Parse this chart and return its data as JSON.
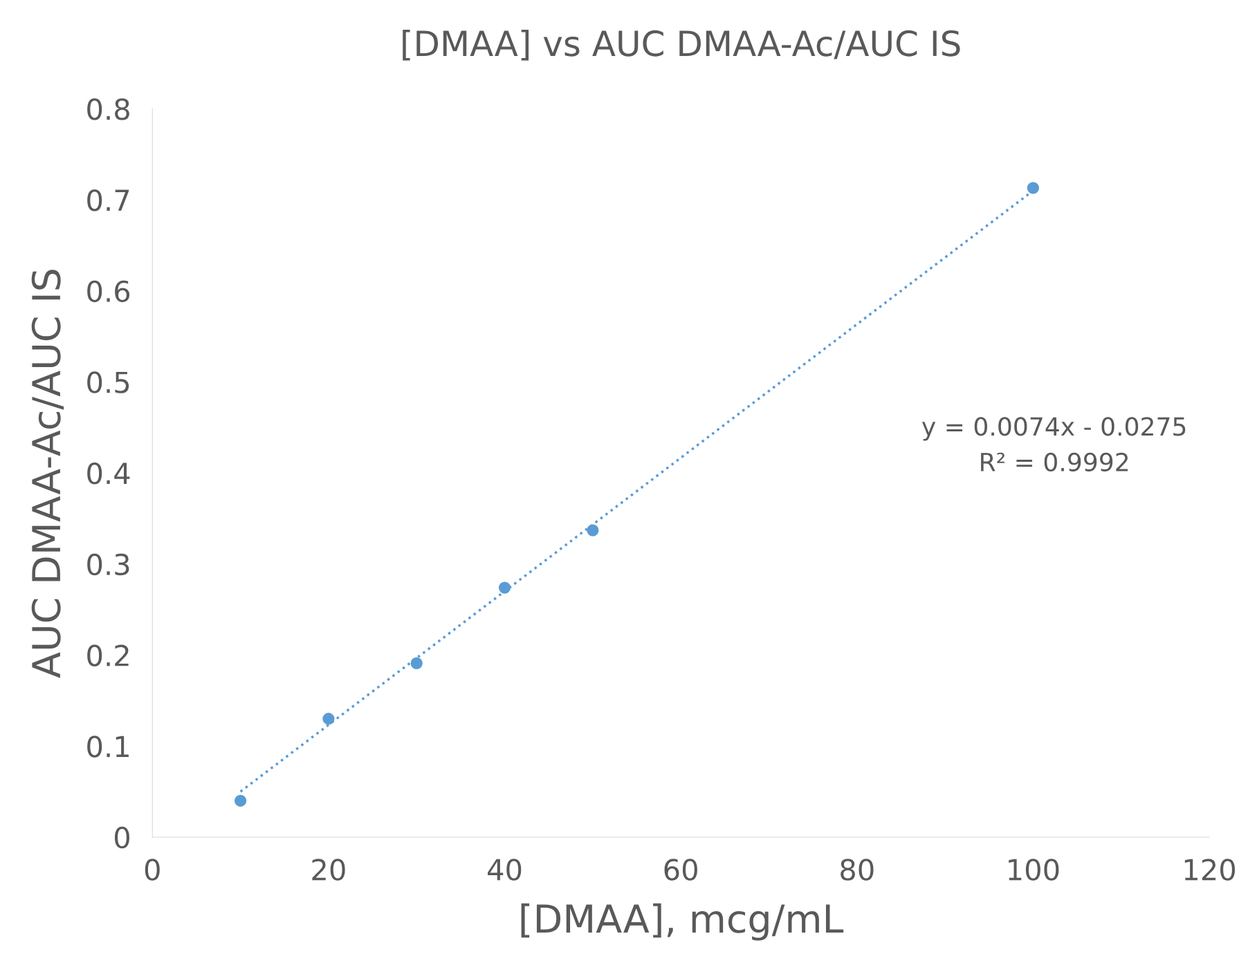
{
  "chart_data": {
    "type": "scatter",
    "title": "[DMAA] vs AUC DMAA-Ac/AUC IS",
    "xlabel": "[DMAA], mcg/mL",
    "ylabel": "AUC DMAA-Ac/AUC IS",
    "series": [
      {
        "color": "#5b9bd5",
        "marker": "circle",
        "x": [
          10,
          20,
          30,
          40,
          50,
          100
        ],
        "values": [
          0.04,
          0.13,
          0.191,
          0.274,
          0.337,
          0.713
        ]
      },
      {
        "type": "line",
        "color": "#5b9bd5",
        "line_style": "dotted",
        "marker": "none",
        "x": [
          10,
          100
        ],
        "values": [
          0.05,
          0.71
        ]
      }
    ],
    "annotations": [
      "y = 0.0074x - 0.0275\nR² = 0.9992"
    ],
    "xlim": [
      0,
      120
    ],
    "xticks": [
      0,
      20,
      40,
      60,
      80,
      100,
      120
    ],
    "ylim": [
      0,
      0.8
    ],
    "yticks": [
      0,
      0.1,
      0.2,
      0.3,
      0.4,
      0.5,
      0.6,
      0.7,
      0.8
    ],
    "grid": false,
    "legend": false
  }
}
